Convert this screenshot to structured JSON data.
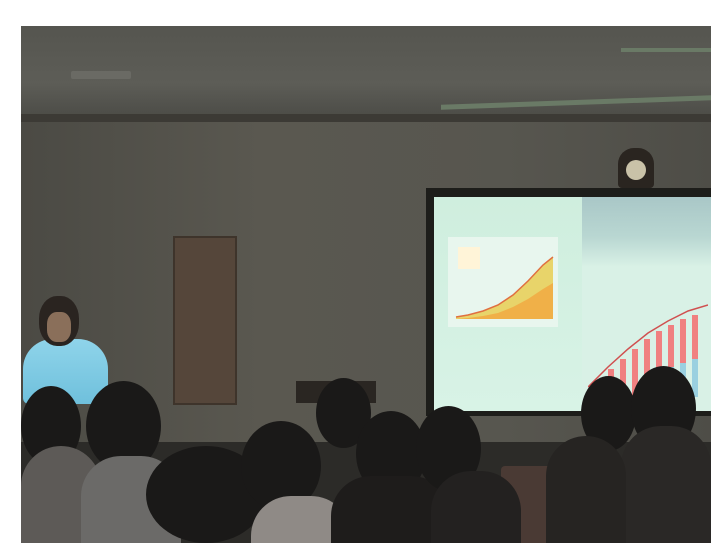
{
  "scene": {
    "description_tag": "photo",
    "colors": {
      "screen": "#d4f1e2",
      "presenter_shirt": "#7fcbe3",
      "wall": "#57564f",
      "audience": "#1a1918"
    },
    "slide": {
      "left_title": "",
      "right_title": ""
    }
  }
}
